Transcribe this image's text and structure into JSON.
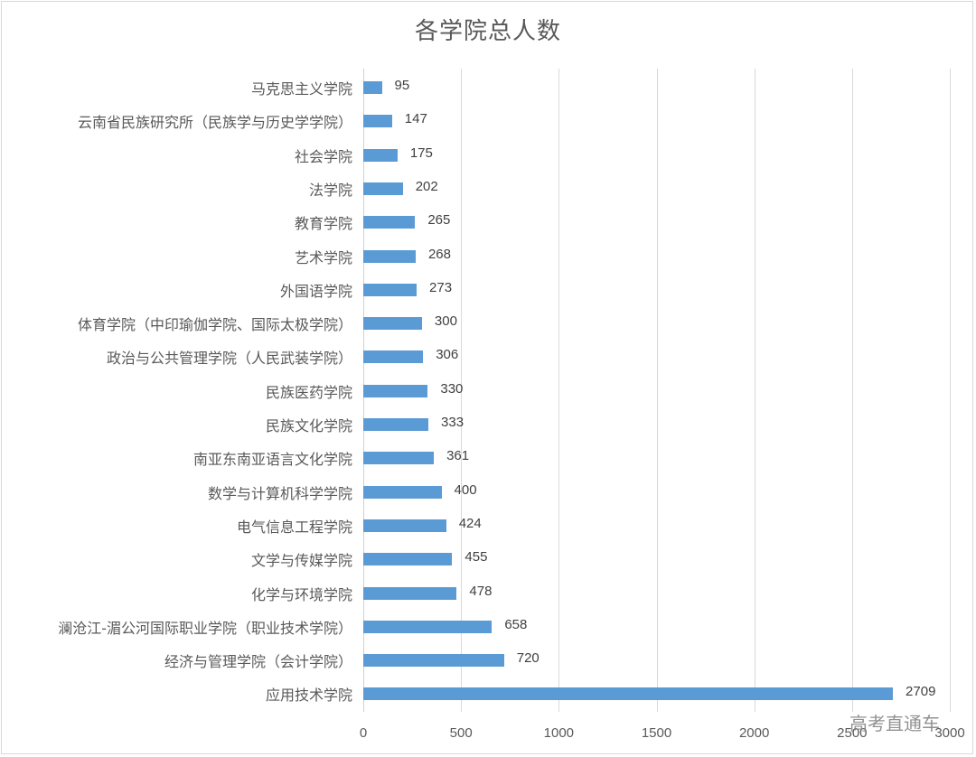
{
  "chart_data": {
    "type": "bar",
    "orientation": "horizontal",
    "title": "各学院总人数",
    "xlabel": "",
    "ylabel": "",
    "xlim": [
      0,
      3000
    ],
    "x_ticks": [
      "0",
      "500",
      "1000",
      "1500",
      "2000",
      "2500",
      "3000"
    ],
    "grid": true,
    "legend": null,
    "bar_color": "#5b9bd5",
    "categories": [
      "马克思主义学院",
      "云南省民族研究所（民族学与历史学学院）",
      "社会学院",
      "法学院",
      "教育学院",
      "艺术学院",
      "外国语学院",
      "体育学院（中印瑜伽学院、国际太极学院）",
      "政治与公共管理学院（人民武装学院）",
      "民族医药学院",
      "民族文化学院",
      "南亚东南亚语言文化学院",
      "数学与计算机科学学院",
      "电气信息工程学院",
      "文学与传媒学院",
      "化学与环境学院",
      "澜沧江-湄公河国际职业学院（职业技术学院）",
      "经济与管理学院（会计学院）",
      "应用技术学院"
    ],
    "values": [
      95,
      147,
      175,
      202,
      265,
      268,
      273,
      300,
      306,
      330,
      333,
      361,
      400,
      424,
      455,
      478,
      658,
      720,
      2709
    ],
    "value_labels": [
      "95",
      "147",
      "175",
      "202",
      "265",
      "268",
      "273",
      "300",
      "306",
      "330",
      "333",
      "361",
      "400",
      "424",
      "455",
      "478",
      "658",
      "720",
      "2709"
    ]
  },
  "watermark": "高考直通车"
}
